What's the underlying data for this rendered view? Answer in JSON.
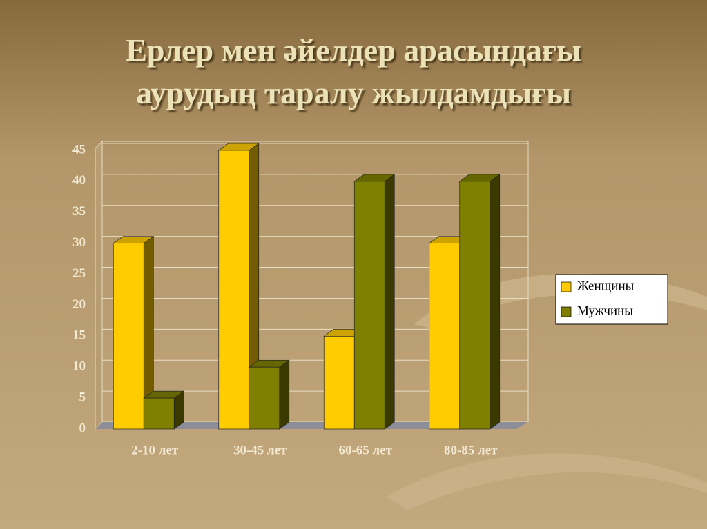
{
  "chart_data": {
    "type": "bar3d",
    "title": [
      "Ерлер мен әйелдер арасындағы",
      "аурудың таралу жылдамдығы"
    ],
    "categories": [
      "2-10 лет",
      "30-45 лет",
      "60-65 лет",
      "80-85 лет"
    ],
    "series": [
      {
        "name": "Женщины",
        "color": "#ffcc00",
        "values": [
          30,
          45,
          15,
          30
        ]
      },
      {
        "name": "Мужчины",
        "color": "#808000",
        "values": [
          5,
          10,
          40,
          40
        ]
      }
    ],
    "ylim": [
      0,
      45
    ],
    "yticks": [
      0,
      5,
      10,
      15,
      20,
      25,
      30,
      35,
      40,
      45
    ],
    "grid": true,
    "legend": "right"
  }
}
